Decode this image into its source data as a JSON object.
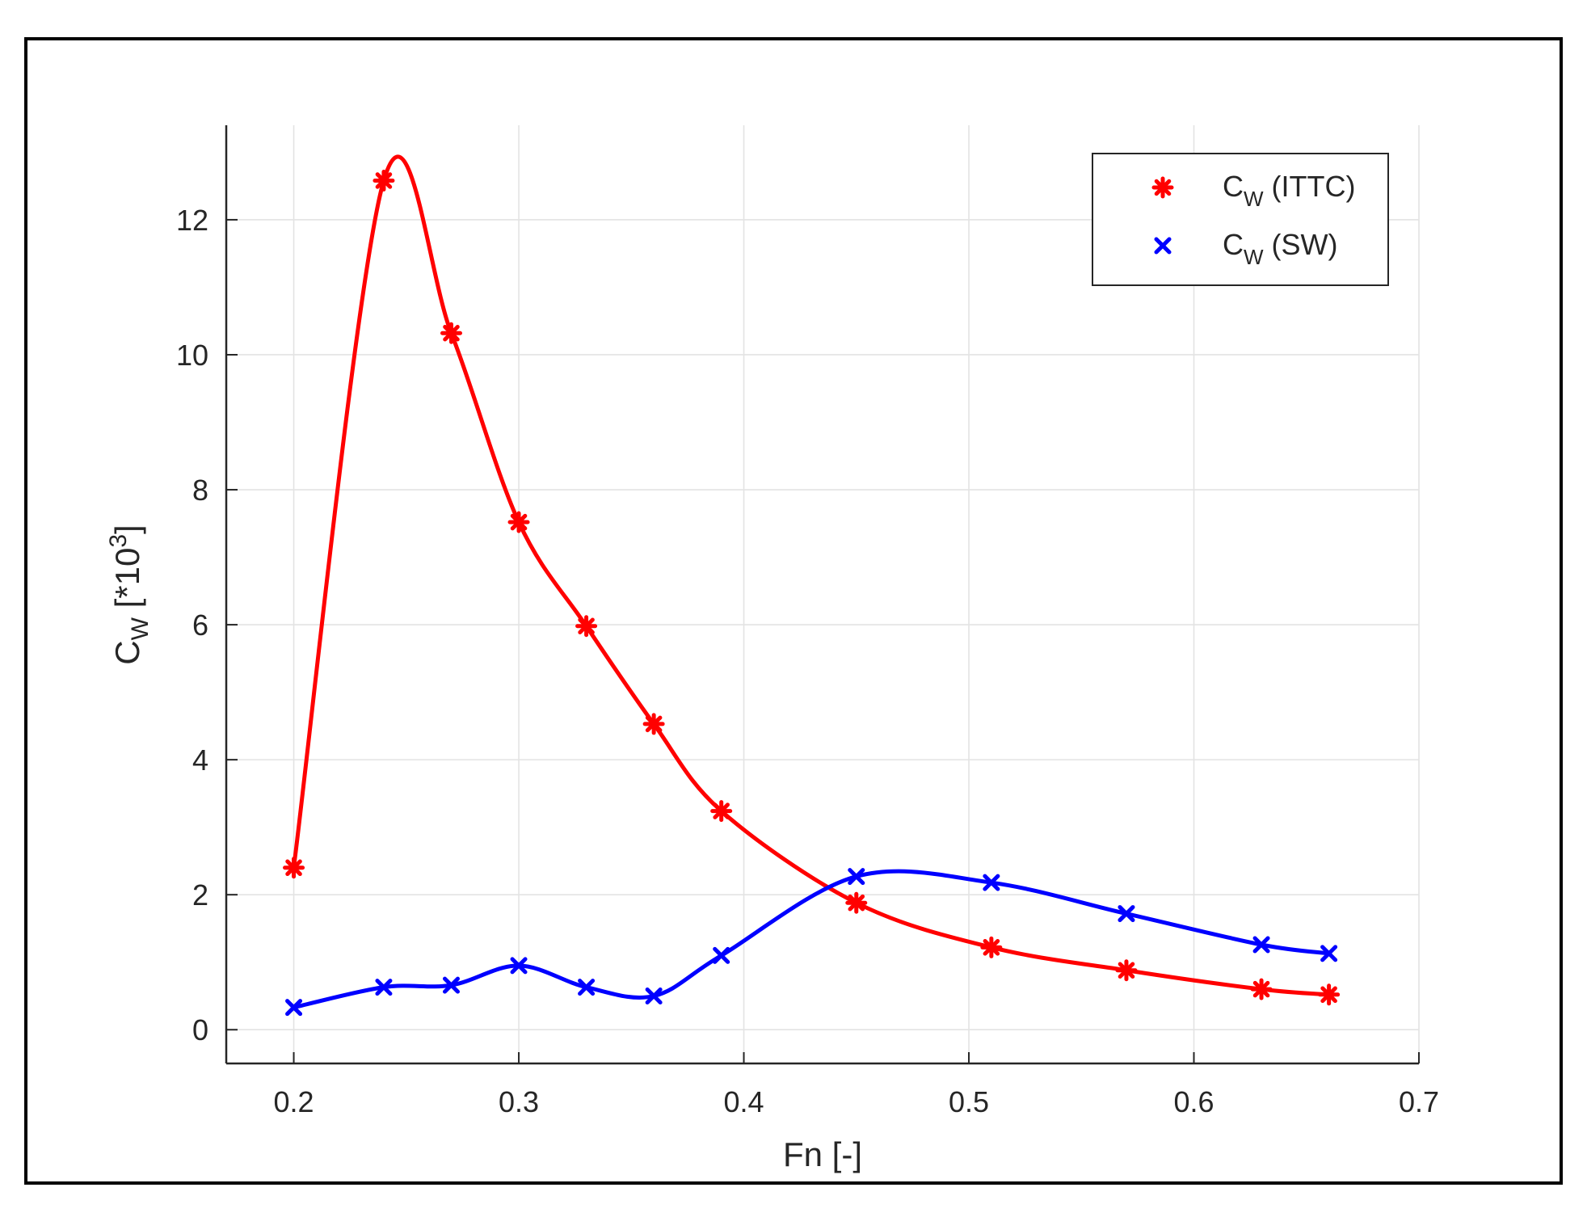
{
  "chart_data": {
    "type": "line",
    "xlabel": "Fn [-]",
    "ylabel": {
      "base": "C",
      "sub": "W",
      "rest": " [*10",
      "sup": "3",
      "end": "]"
    },
    "xlim": [
      0.17,
      0.7
    ],
    "ylim": [
      -0.5,
      13.4
    ],
    "xticks": [
      0.2,
      0.3,
      0.4,
      0.5,
      0.6,
      0.7
    ],
    "xtick_labels": [
      "0.2",
      "0.3",
      "0.4",
      "0.5",
      "0.6",
      "0.7"
    ],
    "yticks": [
      0,
      2,
      4,
      6,
      8,
      10,
      12
    ],
    "ytick_labels": [
      "0",
      "2",
      "4",
      "6",
      "8",
      "10",
      "12"
    ],
    "grid": true,
    "legend_position": "top-right",
    "series": [
      {
        "name": "C_W (ITTC)",
        "legend": {
          "base": "C",
          "sub": "W",
          "rest": " (ITTC)"
        },
        "color": "#ff0000",
        "marker": "asterisk",
        "x": [
          0.2,
          0.24,
          0.27,
          0.3,
          0.33,
          0.36,
          0.39,
          0.45,
          0.51,
          0.57,
          0.63,
          0.66
        ],
        "y": [
          2.4,
          12.58,
          10.32,
          7.52,
          5.98,
          4.53,
          3.24,
          1.88,
          1.22,
          0.88,
          0.6,
          0.52
        ]
      },
      {
        "name": "C_W (SW)",
        "legend": {
          "base": "C",
          "sub": "W",
          "rest": " (SW)"
        },
        "color": "#0000ff",
        "marker": "x",
        "x": [
          0.2,
          0.24,
          0.27,
          0.3,
          0.33,
          0.36,
          0.39,
          0.45,
          0.51,
          0.57,
          0.63,
          0.66
        ],
        "y": [
          0.33,
          0.63,
          0.66,
          0.95,
          0.63,
          0.5,
          1.1,
          2.27,
          2.18,
          1.72,
          1.26,
          1.13
        ]
      }
    ]
  }
}
